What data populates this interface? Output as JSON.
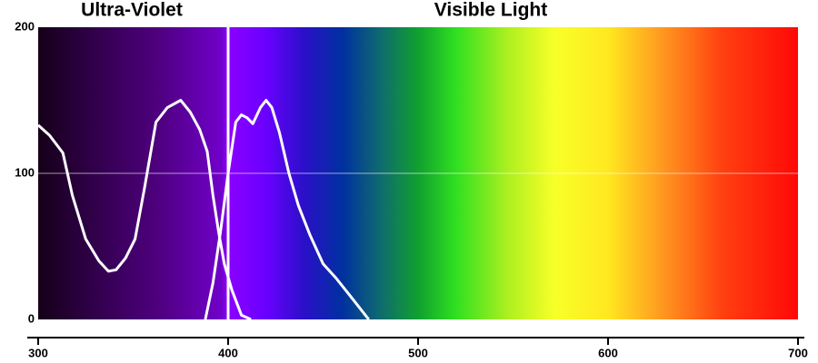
{
  "chart_data": {
    "type": "line",
    "annotations": [
      "Ultra-Violet",
      "Visible Light"
    ],
    "xlim": [
      300,
      700
    ],
    "xticks": [
      300,
      400,
      500,
      600,
      700
    ],
    "ylim": [
      0,
      200
    ],
    "yticks": [
      0,
      100,
      200
    ],
    "grid": true,
    "reference_x": 400,
    "series": [
      {
        "color": "#ffffff",
        "x": [
          300,
          306,
          313,
          318,
          325,
          332,
          337,
          341,
          346,
          351,
          356,
          362,
          368,
          375,
          380,
          385,
          389,
          392,
          395,
          398,
          402,
          407,
          412
        ],
        "values": [
          133,
          126,
          114,
          85,
          55,
          40,
          33,
          34,
          42,
          55,
          90,
          135,
          145,
          150,
          142,
          130,
          115,
          85,
          60,
          38,
          20,
          3,
          0
        ]
      },
      {
        "color": "#ffffff",
        "x": [
          388,
          392,
          396,
          400,
          404,
          407,
          410,
          413,
          417,
          420,
          423,
          427,
          432,
          437,
          443,
          450,
          457,
          465,
          474
        ],
        "values": [
          0,
          25,
          60,
          100,
          135,
          140,
          138,
          134,
          145,
          150,
          145,
          128,
          100,
          78,
          58,
          38,
          28,
          15,
          0
        ]
      }
    ]
  }
}
